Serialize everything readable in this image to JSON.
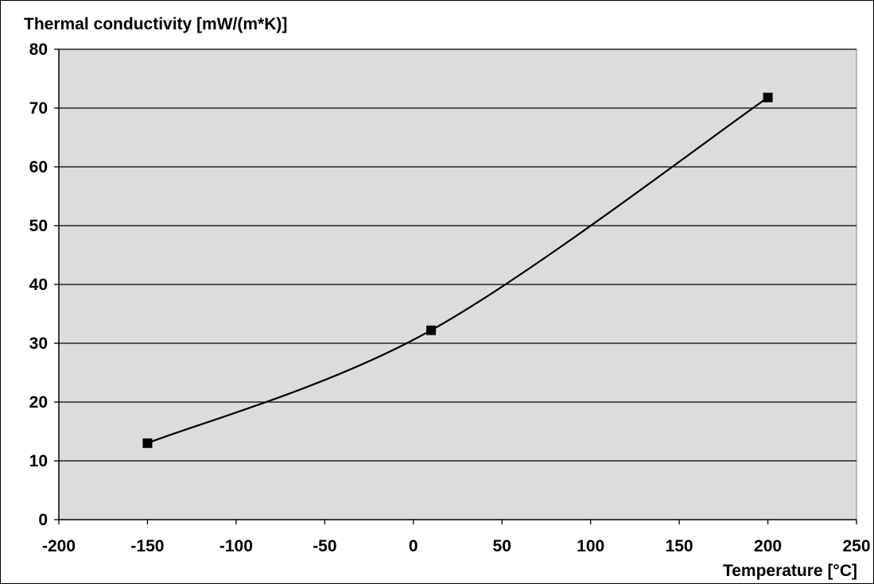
{
  "chart_data": {
    "type": "line",
    "title": "",
    "ylabel": "Thermal conductivity [mW/(m*K)]",
    "xlabel": "Temperature [°C]",
    "xlim": [
      -200,
      250
    ],
    "ylim": [
      0,
      80
    ],
    "x_ticks": [
      -200,
      -150,
      -100,
      -50,
      0,
      50,
      100,
      150,
      200,
      250
    ],
    "y_ticks": [
      0,
      10,
      20,
      30,
      40,
      50,
      60,
      70,
      80
    ],
    "grid": "horizontal",
    "series": [
      {
        "x": [
          -150,
          10,
          200
        ],
        "y": [
          13,
          32.2,
          71.8
        ]
      }
    ],
    "colors": {
      "plot_background": "#dcdcdc",
      "line": "#000000",
      "marker": "#000000",
      "grid": "#000000"
    }
  }
}
